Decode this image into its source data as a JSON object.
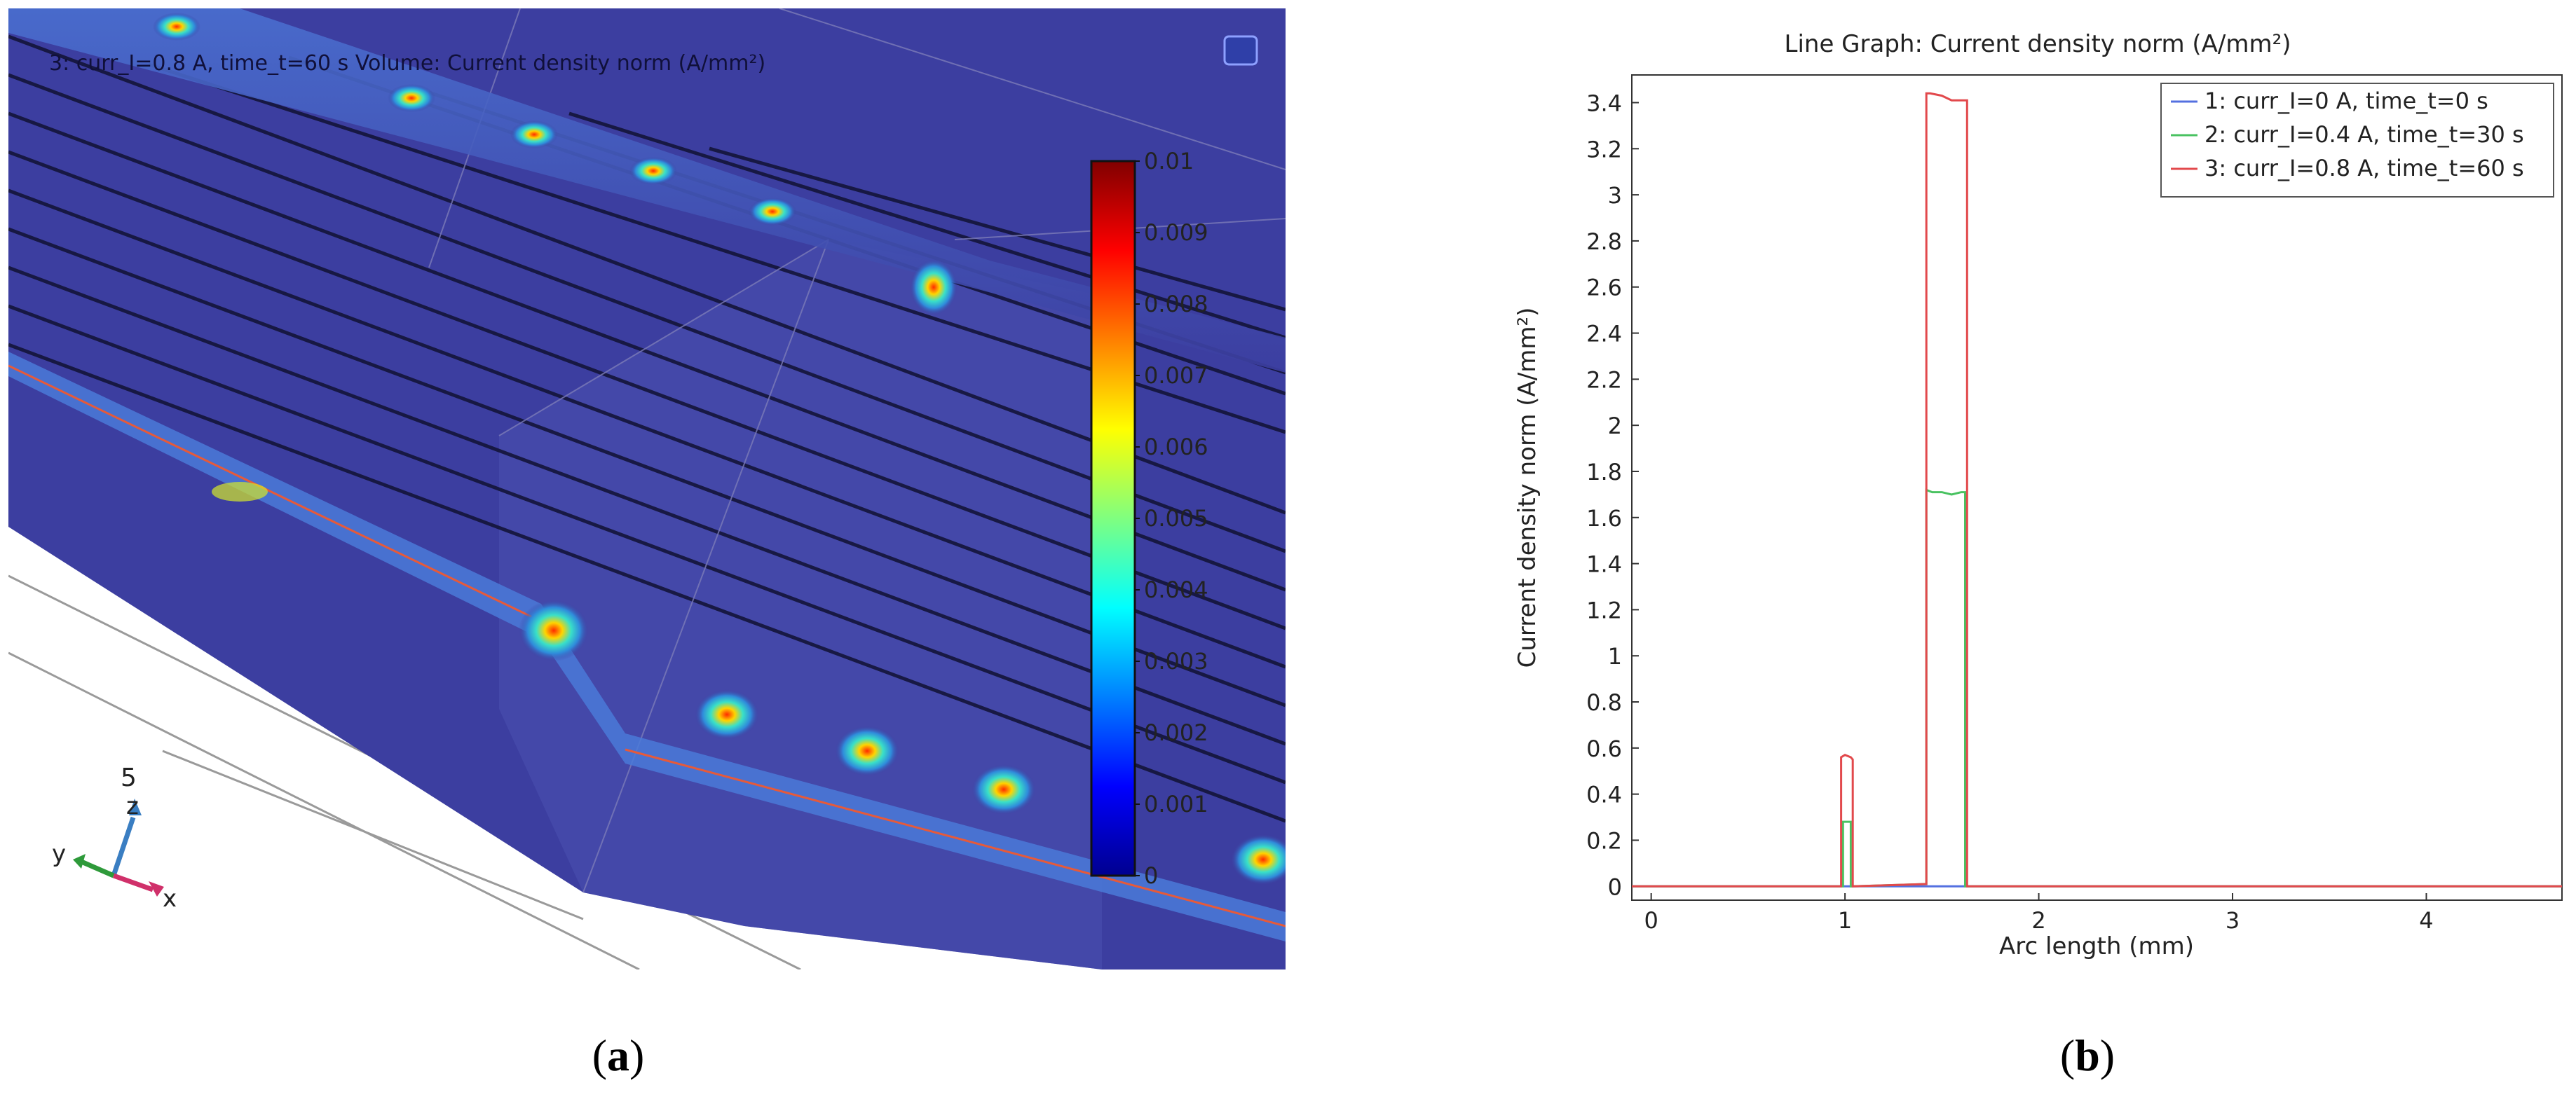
{
  "panel_a": {
    "header_text": "3: curr_I=0.8 A, time_t=60 s  Volume: Current density norm (A/mm²)",
    "colorbar": {
      "ticks": [
        "0.01",
        "0.009",
        "0.008",
        "0.007",
        "0.006",
        "0.005",
        "0.004",
        "0.003",
        "0.002",
        "0.001",
        "0"
      ],
      "colormap": "jet"
    },
    "triad": {
      "label_5": "5",
      "label_z": "z",
      "label_y": "y",
      "label_x": "x"
    },
    "background_color": "#3c3ea0",
    "caption_letter": "a"
  },
  "panel_b": {
    "caption_letter": "b"
  },
  "chart_data": {
    "type": "line",
    "title": "Line Graph: Current density norm (A/mm²)",
    "xlabel": "Arc length (mm)",
    "ylabel": "Current density norm (A/mm²)",
    "xlim": [
      -0.1,
      4.7
    ],
    "ylim": [
      -0.06,
      3.52
    ],
    "xticks": [
      0,
      1,
      2,
      3,
      4
    ],
    "yticks": [
      0,
      0.2,
      0.4,
      0.6,
      0.8,
      1,
      1.2,
      1.4,
      1.6,
      1.8,
      2,
      2.2,
      2.4,
      2.6,
      2.8,
      3,
      3.2,
      3.4
    ],
    "grid": false,
    "legend_position": "top-right",
    "series": [
      {
        "name": "1: curr_I=0 A, time_t=0 s",
        "color": "#5470e0",
        "x": [
          -0.1,
          4.7
        ],
        "y": [
          0,
          0
        ]
      },
      {
        "name": "2: curr_I=0.4 A, time_t=30 s",
        "color": "#49c261",
        "x": [
          -0.1,
          0.99,
          0.99,
          1.03,
          1.03,
          1.42,
          1.42,
          1.45,
          1.5,
          1.55,
          1.6,
          1.62,
          1.62,
          4.7
        ],
        "y": [
          0,
          0,
          0.28,
          0.28,
          0,
          0.01,
          1.72,
          1.71,
          1.71,
          1.7,
          1.71,
          1.71,
          0,
          0
        ]
      },
      {
        "name": "3: curr_I=0.8 A, time_t=60 s",
        "color": "#e2494c",
        "x": [
          -0.1,
          0.98,
          0.98,
          1.0,
          1.03,
          1.04,
          1.04,
          1.42,
          1.42,
          1.44,
          1.5,
          1.55,
          1.6,
          1.63,
          1.63,
          4.7
        ],
        "y": [
          0,
          0,
          0.56,
          0.57,
          0.56,
          0.55,
          0,
          0.01,
          3.44,
          3.44,
          3.43,
          3.41,
          3.41,
          3.41,
          0,
          0
        ]
      }
    ]
  }
}
